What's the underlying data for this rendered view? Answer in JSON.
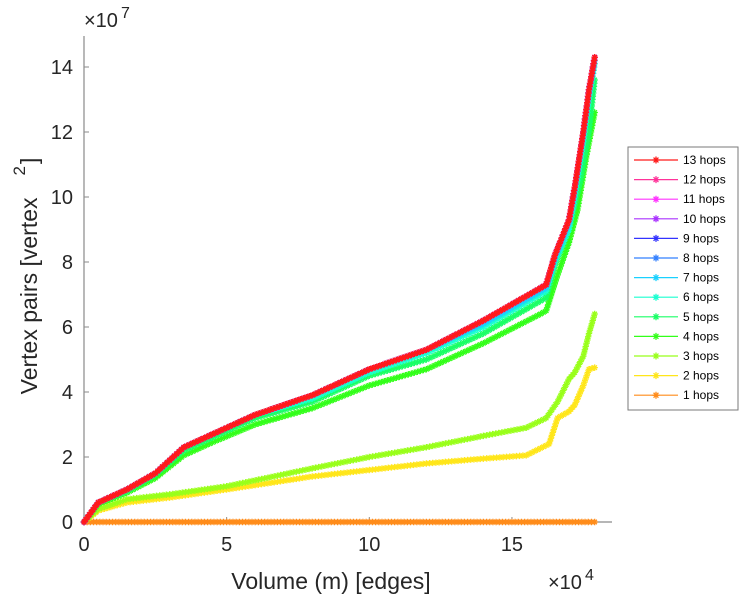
{
  "chart_data": {
    "type": "line",
    "title": "",
    "xlabel": "Volume (m) [edges]",
    "ylabel": "Vertex pairs [vertex",
    "ylabel_superscript": "2",
    "ylabel_close": "]",
    "x_exponent": {
      "base": "×10",
      "power": "4"
    },
    "y_exponent": {
      "base": "×10",
      "power": "7"
    },
    "xlim": [
      0,
      18.5
    ],
    "ylim": [
      0,
      15
    ],
    "xticks": [
      0,
      5,
      10,
      15
    ],
    "xtick_labels": [
      "0",
      "5",
      "10",
      "15"
    ],
    "yticks": [
      0,
      2,
      4,
      6,
      8,
      10,
      12,
      14
    ],
    "ytick_labels": [
      "0",
      "2",
      "4",
      "6",
      "8",
      "10",
      "12",
      "14"
    ],
    "units": {
      "x": "x10^4 edges",
      "y": "x10^7 vertex^2"
    },
    "legend_position": "right",
    "grid": false,
    "marker": "asterisk",
    "series": [
      {
        "name": "13 hops",
        "color": "#ff1a1a",
        "x": [
          0,
          0.5,
          1.5,
          2.5,
          3.5,
          4.5,
          6,
          8,
          10,
          12,
          14,
          16,
          16.2,
          16.5,
          17,
          17.2,
          17.5,
          17.7,
          17.9
        ],
        "y": [
          0,
          0.6,
          1.0,
          1.5,
          2.3,
          2.7,
          3.3,
          3.9,
          4.7,
          5.3,
          6.2,
          7.2,
          7.3,
          8.2,
          9.3,
          10.3,
          12.0,
          13.3,
          14.3
        ]
      },
      {
        "name": "12 hops",
        "color": "#ff3399",
        "x": [
          0,
          0.5,
          1.5,
          2.5,
          3.5,
          4.5,
          6,
          8,
          10,
          12,
          14,
          16,
          16.2,
          16.5,
          17,
          17.2,
          17.5,
          17.7,
          17.9
        ],
        "y": [
          0,
          0.6,
          1.0,
          1.5,
          2.3,
          2.7,
          3.3,
          3.9,
          4.7,
          5.3,
          6.2,
          7.2,
          7.3,
          8.2,
          9.3,
          10.3,
          12.0,
          13.3,
          14.3
        ]
      },
      {
        "name": "11 hops",
        "color": "#ff33ff",
        "x": [
          0,
          0.5,
          1.5,
          2.5,
          3.5,
          4.5,
          6,
          8,
          10,
          12,
          14,
          16,
          16.2,
          16.5,
          17,
          17.2,
          17.5,
          17.7,
          17.9
        ],
        "y": [
          0,
          0.6,
          1.0,
          1.5,
          2.3,
          2.7,
          3.3,
          3.9,
          4.7,
          5.3,
          6.2,
          7.2,
          7.3,
          8.2,
          9.3,
          10.3,
          12.0,
          13.3,
          14.3
        ]
      },
      {
        "name": "10 hops",
        "color": "#aa33ff",
        "x": [
          0,
          0.5,
          1.5,
          2.5,
          3.5,
          4.5,
          6,
          8,
          10,
          12,
          14,
          16,
          16.2,
          16.5,
          17,
          17.2,
          17.5,
          17.7,
          17.9
        ],
        "y": [
          0,
          0.6,
          1.0,
          1.5,
          2.3,
          2.7,
          3.3,
          3.9,
          4.7,
          5.3,
          6.2,
          7.2,
          7.3,
          8.2,
          9.3,
          10.3,
          12.0,
          13.3,
          14.3
        ]
      },
      {
        "name": "9 hops",
        "color": "#3333ff",
        "x": [
          0,
          0.5,
          1.5,
          2.5,
          3.5,
          4.5,
          6,
          8,
          10,
          12,
          14,
          16,
          16.2,
          16.5,
          17,
          17.2,
          17.5,
          17.7,
          17.9
        ],
        "y": [
          0,
          0.6,
          1.0,
          1.5,
          2.3,
          2.7,
          3.3,
          3.9,
          4.7,
          5.3,
          6.2,
          7.2,
          7.3,
          8.2,
          9.3,
          10.3,
          12.0,
          13.3,
          14.3
        ]
      },
      {
        "name": "8 hops",
        "color": "#3380ff",
        "x": [
          0,
          0.5,
          1.5,
          2.5,
          3.5,
          4.5,
          6,
          8,
          10,
          12,
          14,
          16,
          16.2,
          16.5,
          17,
          17.2,
          17.5,
          17.7,
          17.9
        ],
        "y": [
          0,
          0.6,
          1.0,
          1.5,
          2.3,
          2.7,
          3.3,
          3.9,
          4.7,
          5.3,
          6.2,
          7.2,
          7.3,
          8.2,
          9.3,
          10.3,
          12.0,
          13.3,
          14.3
        ]
      },
      {
        "name": "7 hops",
        "color": "#1ad1ff",
        "x": [
          0,
          0.5,
          1.5,
          2.5,
          3.5,
          4.5,
          6,
          8,
          10,
          12,
          14,
          16,
          16.2,
          16.5,
          17,
          17.2,
          17.5,
          17.7,
          17.9
        ],
        "y": [
          0,
          0.6,
          1.0,
          1.5,
          2.3,
          2.7,
          3.3,
          3.9,
          4.7,
          5.3,
          6.1,
          7.1,
          7.2,
          8.1,
          9.2,
          10.2,
          11.9,
          13.2,
          14.2
        ]
      },
      {
        "name": "6 hops",
        "color": "#1affd1",
        "x": [
          0,
          0.5,
          1.5,
          2.5,
          3.5,
          4.5,
          6,
          8,
          10,
          12,
          14,
          16,
          16.2,
          16.5,
          17,
          17.2,
          17.5,
          17.7,
          17.9
        ],
        "y": [
          0,
          0.6,
          1.0,
          1.5,
          2.3,
          2.7,
          3.3,
          3.8,
          4.6,
          5.2,
          6.0,
          7.0,
          7.1,
          8.0,
          9.0,
          10.0,
          11.7,
          13.0,
          14.1
        ]
      },
      {
        "name": "5 hops",
        "color": "#1aff66",
        "x": [
          0,
          0.5,
          1.5,
          2.5,
          3.5,
          4.5,
          6,
          8,
          10,
          12,
          14,
          16,
          16.2,
          16.5,
          17,
          17.4,
          17.7,
          17.9
        ],
        "y": [
          0,
          0.6,
          0.95,
          1.45,
          2.2,
          2.6,
          3.2,
          3.7,
          4.5,
          5.0,
          5.8,
          6.8,
          6.9,
          7.9,
          9.0,
          10.5,
          12.0,
          13.6
        ]
      },
      {
        "name": "4 hops",
        "color": "#33ff1a",
        "x": [
          0,
          0.5,
          1.5,
          2.5,
          3.5,
          4.5,
          6,
          8,
          10,
          12,
          14,
          16,
          16.2,
          16.6,
          17,
          17.3,
          17.6,
          17.9
        ],
        "y": [
          0,
          0.55,
          0.9,
          1.35,
          2.05,
          2.45,
          3.0,
          3.5,
          4.2,
          4.7,
          5.5,
          6.4,
          6.5,
          7.6,
          8.6,
          9.6,
          11.2,
          12.6
        ]
      },
      {
        "name": "3 hops",
        "color": "#99ff1a",
        "x": [
          0,
          0.5,
          1.5,
          3,
          5,
          8,
          10,
          12,
          14,
          15.5,
          16.2,
          16.6,
          17,
          17.2,
          17.5,
          17.7,
          17.9
        ],
        "y": [
          0,
          0.4,
          0.7,
          0.85,
          1.1,
          1.65,
          2.0,
          2.3,
          2.65,
          2.9,
          3.2,
          3.7,
          4.4,
          4.6,
          5.1,
          5.8,
          6.4
        ]
      },
      {
        "name": "2 hops",
        "color": "#ffe61a",
        "x": [
          0,
          0.5,
          1.5,
          3,
          5,
          8,
          10,
          12,
          14,
          15.5,
          16.3,
          16.6,
          17,
          17.2,
          17.5,
          17.7,
          17.9
        ],
        "y": [
          0,
          0.35,
          0.6,
          0.75,
          1.0,
          1.4,
          1.6,
          1.8,
          1.95,
          2.05,
          2.4,
          3.2,
          3.4,
          3.6,
          4.2,
          4.7,
          4.75
        ]
      },
      {
        "name": "1 hops",
        "color": "#ff8c1a",
        "x": [
          0,
          1,
          2,
          3,
          4,
          5,
          6,
          7,
          8,
          9,
          10,
          11,
          12,
          13,
          14,
          15,
          16,
          17,
          17.9
        ],
        "y": [
          0,
          0,
          0,
          0,
          0,
          0,
          0,
          0,
          0,
          0,
          0,
          0,
          0,
          0,
          0,
          0,
          0,
          0,
          0
        ]
      }
    ]
  }
}
